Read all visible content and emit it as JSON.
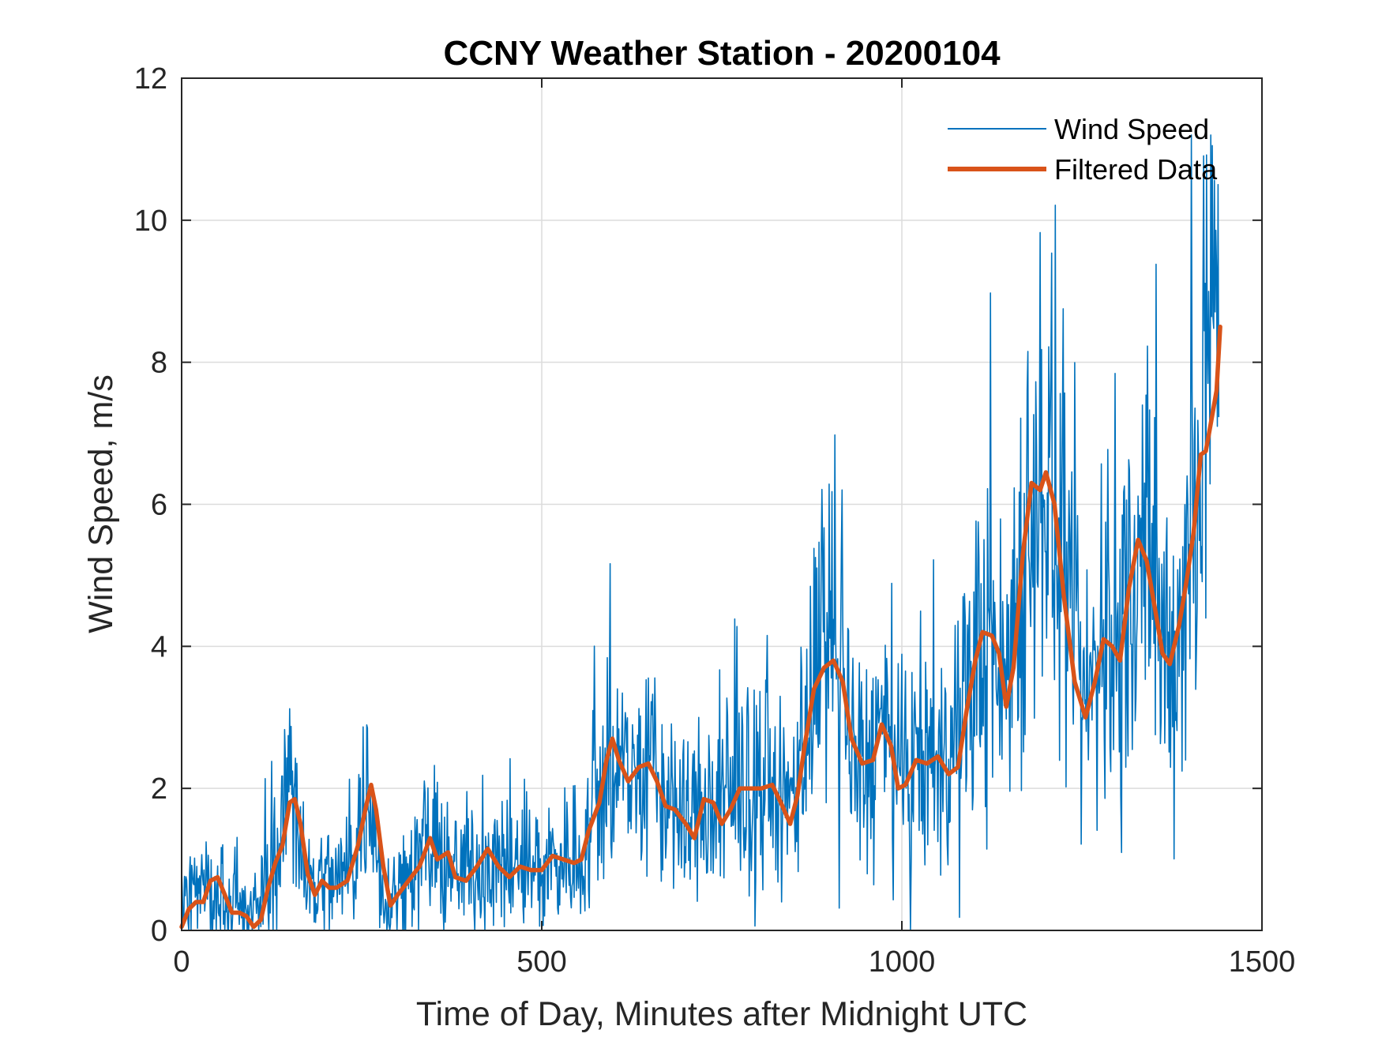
{
  "chart_data": {
    "type": "line",
    "title": "CCNY Weather Station - 20200104",
    "xlabel": "Time of Day, Minutes after Midnight UTC",
    "ylabel": "Wind Speed, m/s",
    "xlim": [
      0,
      1500
    ],
    "ylim": [
      0,
      12
    ],
    "xticks": [
      0,
      500,
      1000,
      1500
    ],
    "yticks": [
      0,
      2,
      4,
      6,
      8,
      10,
      12
    ],
    "grid": true,
    "legend_position": "top-right",
    "series": [
      {
        "name": "Wind Speed",
        "color": "#0072BD",
        "style": "thin-noisy",
        "description": "1-minute raw wind speed samples",
        "envelope": [
          [
            0,
            0.6
          ],
          [
            20,
            0.5
          ],
          [
            40,
            0.6
          ],
          [
            60,
            0.3
          ],
          [
            80,
            0.2
          ],
          [
            100,
            0.2
          ],
          [
            120,
            0.8
          ],
          [
            140,
            1.3
          ],
          [
            150,
            2.6
          ],
          [
            165,
            1.2
          ],
          [
            180,
            0.6
          ],
          [
            200,
            0.7
          ],
          [
            220,
            0.7
          ],
          [
            240,
            1.1
          ],
          [
            255,
            1.9
          ],
          [
            270,
            1.3
          ],
          [
            285,
            0.4
          ],
          [
            300,
            0.6
          ],
          [
            320,
            0.9
          ],
          [
            340,
            1.2
          ],
          [
            360,
            0.9
          ],
          [
            380,
            0.8
          ],
          [
            400,
            0.9
          ],
          [
            420,
            1.0
          ],
          [
            440,
            0.9
          ],
          [
            460,
            0.8
          ],
          [
            480,
            0.9
          ],
          [
            500,
            0.9
          ],
          [
            520,
            1.0
          ],
          [
            540,
            1.0
          ],
          [
            560,
            1.2
          ],
          [
            580,
            1.8
          ],
          [
            600,
            2.5
          ],
          [
            620,
            2.1
          ],
          [
            640,
            2.3
          ],
          [
            660,
            2.1
          ],
          [
            680,
            1.7
          ],
          [
            700,
            1.5
          ],
          [
            720,
            1.7
          ],
          [
            740,
            1.6
          ],
          [
            760,
            1.8
          ],
          [
            780,
            1.9
          ],
          [
            800,
            2.0
          ],
          [
            820,
            2.0
          ],
          [
            840,
            1.6
          ],
          [
            860,
            2.6
          ],
          [
            880,
            3.5
          ],
          [
            900,
            3.7
          ],
          [
            915,
            3.2
          ],
          [
            930,
            2.5
          ],
          [
            950,
            2.3
          ],
          [
            970,
            2.8
          ],
          [
            985,
            2.4
          ],
          [
            1000,
            2.0
          ],
          [
            1020,
            2.3
          ],
          [
            1040,
            2.4
          ],
          [
            1060,
            2.3
          ],
          [
            1080,
            2.5
          ],
          [
            1100,
            3.8
          ],
          [
            1120,
            4.1
          ],
          [
            1140,
            3.4
          ],
          [
            1160,
            4.8
          ],
          [
            1180,
            6.2
          ],
          [
            1200,
            6.4
          ],
          [
            1215,
            5.8
          ],
          [
            1230,
            4.2
          ],
          [
            1250,
            3.1
          ],
          [
            1265,
            3.5
          ],
          [
            1280,
            4.1
          ],
          [
            1300,
            3.9
          ],
          [
            1315,
            4.8
          ],
          [
            1330,
            5.4
          ],
          [
            1345,
            4.9
          ],
          [
            1360,
            4.0
          ],
          [
            1375,
            4.0
          ],
          [
            1390,
            4.6
          ],
          [
            1405,
            5.8
          ],
          [
            1420,
            6.8
          ],
          [
            1430,
            7.6
          ],
          [
            1440,
            9.0
          ]
        ],
        "peak_max": 11.2
      },
      {
        "name": "Filtered Data",
        "color": "#D95319",
        "style": "thick-smooth",
        "points": [
          [
            0,
            0.05
          ],
          [
            10,
            0.3
          ],
          [
            20,
            0.4
          ],
          [
            30,
            0.4
          ],
          [
            40,
            0.7
          ],
          [
            50,
            0.75
          ],
          [
            60,
            0.5
          ],
          [
            70,
            0.25
          ],
          [
            80,
            0.25
          ],
          [
            90,
            0.2
          ],
          [
            100,
            0.05
          ],
          [
            110,
            0.15
          ],
          [
            120,
            0.6
          ],
          [
            130,
            0.95
          ],
          [
            140,
            1.2
          ],
          [
            150,
            1.8
          ],
          [
            157,
            1.85
          ],
          [
            165,
            1.5
          ],
          [
            175,
            0.8
          ],
          [
            185,
            0.5
          ],
          [
            195,
            0.7
          ],
          [
            205,
            0.6
          ],
          [
            215,
            0.6
          ],
          [
            230,
            0.7
          ],
          [
            245,
            1.2
          ],
          [
            255,
            1.7
          ],
          [
            263,
            2.05
          ],
          [
            270,
            1.7
          ],
          [
            280,
            0.9
          ],
          [
            290,
            0.35
          ],
          [
            300,
            0.5
          ],
          [
            315,
            0.7
          ],
          [
            330,
            0.9
          ],
          [
            345,
            1.3
          ],
          [
            355,
            1.0
          ],
          [
            370,
            1.1
          ],
          [
            380,
            0.75
          ],
          [
            395,
            0.7
          ],
          [
            410,
            0.9
          ],
          [
            425,
            1.15
          ],
          [
            440,
            0.9
          ],
          [
            455,
            0.75
          ],
          [
            470,
            0.9
          ],
          [
            485,
            0.85
          ],
          [
            500,
            0.85
          ],
          [
            515,
            1.05
          ],
          [
            530,
            1.0
          ],
          [
            545,
            0.95
          ],
          [
            555,
            1.0
          ],
          [
            565,
            1.4
          ],
          [
            580,
            1.8
          ],
          [
            590,
            2.4
          ],
          [
            598,
            2.7
          ],
          [
            607,
            2.4
          ],
          [
            620,
            2.1
          ],
          [
            635,
            2.3
          ],
          [
            648,
            2.35
          ],
          [
            660,
            2.1
          ],
          [
            672,
            1.75
          ],
          [
            685,
            1.7
          ],
          [
            700,
            1.5
          ],
          [
            712,
            1.3
          ],
          [
            725,
            1.85
          ],
          [
            738,
            1.8
          ],
          [
            750,
            1.5
          ],
          [
            762,
            1.7
          ],
          [
            775,
            2.0
          ],
          [
            790,
            2.0
          ],
          [
            805,
            2.0
          ],
          [
            820,
            2.05
          ],
          [
            832,
            1.8
          ],
          [
            845,
            1.5
          ],
          [
            855,
            1.9
          ],
          [
            865,
            2.6
          ],
          [
            878,
            3.4
          ],
          [
            892,
            3.7
          ],
          [
            905,
            3.8
          ],
          [
            918,
            3.5
          ],
          [
            930,
            2.7
          ],
          [
            945,
            2.35
          ],
          [
            960,
            2.4
          ],
          [
            972,
            2.9
          ],
          [
            985,
            2.6
          ],
          [
            995,
            2.0
          ],
          [
            1005,
            2.05
          ],
          [
            1020,
            2.4
          ],
          [
            1035,
            2.35
          ],
          [
            1050,
            2.45
          ],
          [
            1065,
            2.2
          ],
          [
            1078,
            2.3
          ],
          [
            1090,
            3.1
          ],
          [
            1102,
            3.8
          ],
          [
            1112,
            4.2
          ],
          [
            1125,
            4.15
          ],
          [
            1135,
            3.9
          ],
          [
            1145,
            3.15
          ],
          [
            1155,
            3.7
          ],
          [
            1168,
            5.3
          ],
          [
            1180,
            6.3
          ],
          [
            1192,
            6.2
          ],
          [
            1200,
            6.45
          ],
          [
            1212,
            6.0
          ],
          [
            1225,
            4.7
          ],
          [
            1240,
            3.5
          ],
          [
            1255,
            3.0
          ],
          [
            1268,
            3.5
          ],
          [
            1280,
            4.1
          ],
          [
            1292,
            4.0
          ],
          [
            1303,
            3.8
          ],
          [
            1315,
            4.8
          ],
          [
            1328,
            5.5
          ],
          [
            1340,
            5.2
          ],
          [
            1352,
            4.5
          ],
          [
            1362,
            3.9
          ],
          [
            1372,
            3.75
          ],
          [
            1385,
            4.3
          ],
          [
            1395,
            4.9
          ],
          [
            1405,
            5.6
          ],
          [
            1415,
            6.7
          ],
          [
            1422,
            6.75
          ],
          [
            1430,
            7.2
          ],
          [
            1437,
            7.6
          ],
          [
            1442,
            8.5
          ]
        ]
      }
    ]
  }
}
